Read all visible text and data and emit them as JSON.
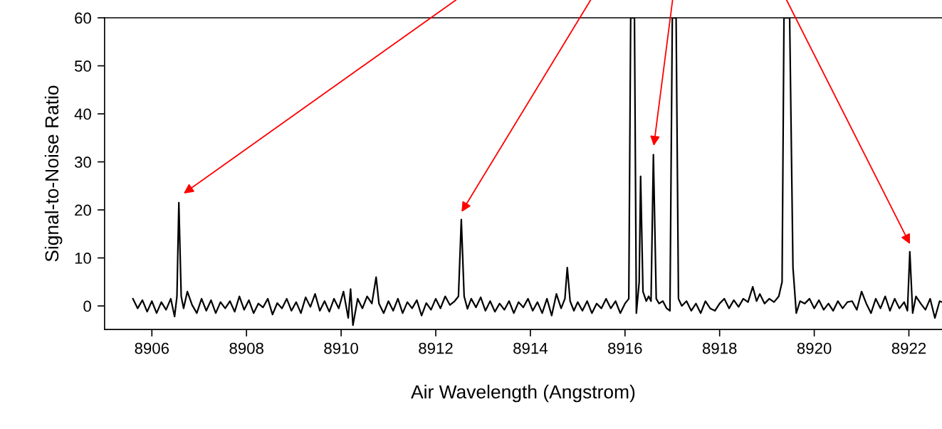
{
  "chart_data": {
    "type": "line",
    "xlabel": "Air Wavelength (Angstrom)",
    "ylabel": "Signal-to-Noise Ratio",
    "xlim": [
      8905.0,
      8922.7
    ],
    "ylim": [
      -4.9,
      60
    ],
    "xticks": [
      8906,
      8908,
      8910,
      8912,
      8914,
      8916,
      8918,
      8920,
      8922
    ],
    "yticks": [
      0,
      10,
      20,
      30,
      40,
      50,
      60
    ],
    "grid": false,
    "marker": "none",
    "line_style": "solid",
    "series": [
      {
        "color": "#000000",
        "x": [
          8905.6,
          8905.7,
          8905.8,
          8905.9,
          8906.0,
          8906.1,
          8906.2,
          8906.3,
          8906.4,
          8906.48,
          8906.53,
          8906.57,
          8906.62,
          8906.67,
          8906.75,
          8906.85,
          8906.95,
          8907.05,
          8907.15,
          8907.25,
          8907.35,
          8907.45,
          8907.55,
          8907.65,
          8907.75,
          8907.85,
          8907.95,
          8908.05,
          8908.15,
          8908.25,
          8908.35,
          8908.45,
          8908.55,
          8908.65,
          8908.75,
          8908.85,
          8908.95,
          8909.05,
          8909.15,
          8909.25,
          8909.35,
          8909.45,
          8909.55,
          8909.65,
          8909.75,
          8909.85,
          8909.95,
          8910.05,
          8910.15,
          8910.2,
          8910.25,
          8910.35,
          8910.45,
          8910.55,
          8910.65,
          8910.74,
          8910.8,
          8910.9,
          8911.0,
          8911.1,
          8911.2,
          8911.3,
          8911.4,
          8911.5,
          8911.6,
          8911.7,
          8911.8,
          8911.9,
          8912.0,
          8912.1,
          8912.2,
          8912.3,
          8912.4,
          8912.48,
          8912.54,
          8912.6,
          8912.67,
          8912.75,
          8912.85,
          8912.95,
          8913.05,
          8913.15,
          8913.25,
          8913.35,
          8913.45,
          8913.55,
          8913.65,
          8913.75,
          8913.85,
          8913.95,
          8914.05,
          8914.15,
          8914.25,
          8914.35,
          8914.45,
          8914.55,
          8914.65,
          8914.73,
          8914.78,
          8914.84,
          8914.92,
          8915.0,
          8915.1,
          8915.2,
          8915.3,
          8915.4,
          8915.5,
          8915.6,
          8915.7,
          8915.8,
          8915.9,
          8916.0,
          8916.08,
          8916.12,
          8916.2,
          8916.24,
          8916.3,
          8916.33,
          8916.38,
          8916.45,
          8916.5,
          8916.55,
          8916.6,
          8916.66,
          8916.72,
          8916.8,
          8916.88,
          8916.95,
          8917.0,
          8917.08,
          8917.13,
          8917.2,
          8917.3,
          8917.4,
          8917.5,
          8917.6,
          8917.7,
          8917.8,
          8917.9,
          8918.0,
          8918.1,
          8918.2,
          8918.3,
          8918.4,
          8918.5,
          8918.6,
          8918.7,
          8918.78,
          8918.85,
          8918.95,
          8919.05,
          8919.15,
          8919.25,
          8919.32,
          8919.36,
          8919.48,
          8919.55,
          8919.62,
          8919.7,
          8919.8,
          8919.9,
          8920.0,
          8920.1,
          8920.2,
          8920.3,
          8920.4,
          8920.5,
          8920.6,
          8920.7,
          8920.8,
          8920.9,
          8921.0,
          8921.1,
          8921.2,
          8921.3,
          8921.4,
          8921.5,
          8921.6,
          8921.7,
          8921.8,
          8921.9,
          8921.97,
          8922.02,
          8922.08,
          8922.15,
          8922.25,
          8922.35,
          8922.45,
          8922.55,
          8922.65,
          8922.7
        ],
        "values": [
          1.5,
          -0.5,
          1.2,
          -1.2,
          1.0,
          -1.5,
          0.8,
          -0.8,
          1.5,
          -2.2,
          2,
          21.5,
          2,
          -0.5,
          3,
          0.2,
          -1.5,
          1.5,
          -1,
          1.2,
          -1.5,
          0.8,
          -0.5,
          1,
          -1.2,
          2,
          -0.8,
          1.2,
          -1.5,
          0.5,
          -0.3,
          1.5,
          -1.8,
          0.6,
          -0.5,
          1.5,
          -1,
          0.8,
          -1.5,
          1.8,
          -0.2,
          2.5,
          -1,
          1,
          -1.2,
          1.5,
          -0.5,
          3,
          -2.5,
          3.5,
          -4,
          1.5,
          -0.5,
          2,
          0.5,
          6,
          0.5,
          -1.5,
          1,
          -1,
          1.5,
          -1.5,
          0.8,
          -0.5,
          1.2,
          -2,
          0.6,
          -0.8,
          1.5,
          -0.5,
          2,
          0.2,
          1,
          2,
          18,
          2,
          -0.6,
          1.5,
          -0.3,
          1.8,
          -1,
          1,
          -1.2,
          0.5,
          -0.8,
          1,
          -1.5,
          0.8,
          -0.3,
          1.5,
          -1,
          0.8,
          -1.5,
          1.5,
          -2,
          2.5,
          -0.5,
          1.5,
          8,
          1,
          -1,
          0.8,
          -1,
          1,
          -1.5,
          0.5,
          -0.5,
          1.5,
          -0.5,
          1,
          -1.5,
          0.5,
          1.5,
          60,
          60,
          -1.5,
          5,
          27,
          3,
          1,
          2,
          1,
          31.5,
          1.5,
          0.5,
          1,
          -0.5,
          -1,
          60,
          60,
          1.5,
          0,
          1,
          -1,
          0.5,
          -1.5,
          1,
          -0.5,
          -1,
          0.5,
          1.5,
          -0.5,
          1.2,
          -0.2,
          1.5,
          0.8,
          4,
          1,
          2.5,
          0.5,
          1.5,
          0.8,
          2,
          5,
          60,
          60,
          8,
          -1.5,
          1,
          0.5,
          1.5,
          -0.5,
          1.2,
          -0.8,
          0.5,
          -1,
          1,
          -0.5,
          0.8,
          1,
          -0.8,
          3,
          0.5,
          -1.5,
          1.5,
          -0.5,
          2,
          -1,
          1.5,
          -0.5,
          0.8,
          -1,
          11.3,
          -1.5,
          2,
          0.5,
          -0.8,
          1.5,
          -2.5,
          1,
          0.8
        ]
      }
    ]
  }
}
